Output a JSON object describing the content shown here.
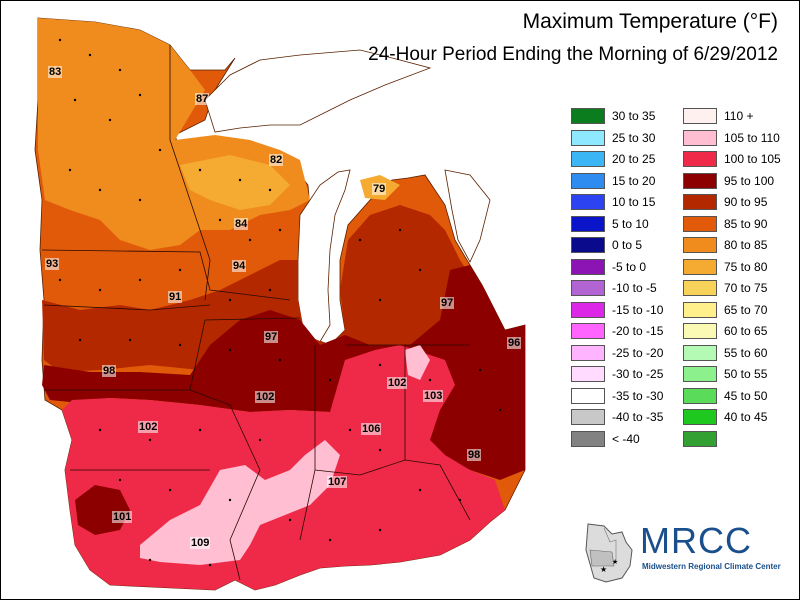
{
  "title": "Maximum Temperature (°F)",
  "subtitle": "24-Hour Period Ending the Morning of 6/29/2012",
  "legend": {
    "left": [
      {
        "label": "30 to 35",
        "color": "#0b7d1e"
      },
      {
        "label": "25 to 30",
        "color": "#8ee8ff"
      },
      {
        "label": "20 to 25",
        "color": "#3bb6f5"
      },
      {
        "label": "15 to 20",
        "color": "#2e8cf0"
      },
      {
        "label": "10 to 15",
        "color": "#2b43f0"
      },
      {
        "label": "5 to 10",
        "color": "#0a14c8"
      },
      {
        "label": "0 to 5",
        "color": "#0a0a8c"
      },
      {
        "label": "-5 to 0",
        "color": "#8c14b4"
      },
      {
        "label": "-10 to -5",
        "color": "#b264d2"
      },
      {
        "label": "-15 to -10",
        "color": "#dc28e6"
      },
      {
        "label": "-20 to -15",
        "color": "#ff64ff"
      },
      {
        "label": "-25 to -20",
        "color": "#ffb4ff"
      },
      {
        "label": "-30 to -25",
        "color": "#ffdcff"
      },
      {
        "label": "-35 to -30",
        "color": "#ffffff"
      },
      {
        "label": "-40 to -35",
        "color": "#c8c8c8"
      },
      {
        "label": "< -40",
        "color": "#828282"
      }
    ],
    "right": [
      {
        "label": "110 +",
        "color": "#fff0f0"
      },
      {
        "label": "105 to 110",
        "color": "#ffbed2"
      },
      {
        "label": "100 to 105",
        "color": "#ee2a48"
      },
      {
        "label": "95 to 100",
        "color": "#8c0000"
      },
      {
        "label": "90 to 95",
        "color": "#b42800"
      },
      {
        "label": "85 to 90",
        "color": "#e05a0a"
      },
      {
        "label": "80 to 85",
        "color": "#f08c1e"
      },
      {
        "label": "75 to 80",
        "color": "#f5aa32"
      },
      {
        "label": "70 to 75",
        "color": "#f7d25a"
      },
      {
        "label": "65 to 70",
        "color": "#fff08c"
      },
      {
        "label": "60 to 65",
        "color": "#fafab4"
      },
      {
        "label": "55 to 60",
        "color": "#b4fab4"
      },
      {
        "label": "50 to 55",
        "color": "#8cf08c"
      },
      {
        "label": "45 to 50",
        "color": "#5adc5a"
      },
      {
        "label": "40 to 45",
        "color": "#1ec81e"
      },
      {
        "label": "",
        "color": "#32a032"
      }
    ]
  },
  "values": [
    "83",
    "87",
    "82",
    "79",
    "84",
    "93",
    "94",
    "91",
    "97",
    "96",
    "98",
    "97",
    "102",
    "102",
    "103",
    "102",
    "106",
    "98",
    "107",
    "101",
    "109"
  ],
  "logo": {
    "text": "MRCC",
    "sub": "Midwestern Regional Climate Center"
  }
}
